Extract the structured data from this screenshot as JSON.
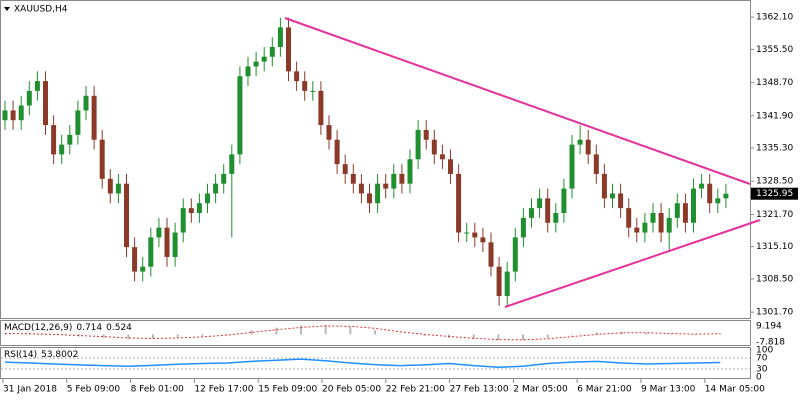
{
  "chart_data": {
    "type": "candlestick",
    "title": "XAUUSD,H4",
    "up_color": "#1f8f2f",
    "down_color": "#8b3a2a",
    "open": [
      1341,
      1343,
      1341,
      1344,
      1347,
      1349,
      1340,
      1334,
      1336,
      1338,
      1343,
      1346,
      1337,
      1329,
      1326,
      1328,
      1315,
      1310,
      1311,
      1317,
      1319,
      1313,
      1318,
      1323,
      1322,
      1324,
      1326,
      1328,
      1330,
      1334,
      1350,
      1352,
      1353,
      1354,
      1356,
      1360,
      1351,
      1349,
      1347,
      1347,
      1340,
      1337,
      1332,
      1330,
      1328,
      1326,
      1324,
      1328,
      1327,
      1330,
      1328,
      1333,
      1339,
      1337,
      1334,
      1333,
      1330,
      1318,
      1318,
      1317,
      1316,
      1311,
      1305,
      1310,
      1317,
      1321,
      1323,
      1325,
      1320,
      1322,
      1327,
      1336,
      1337,
      1334,
      1330,
      1325,
      1326,
      1323,
      1319,
      1318,
      1320,
      1322,
      1318,
      1321,
      1324,
      1320,
      1327,
      1328,
      1324,
      1325
    ],
    "high": [
      1345,
      1345,
      1346,
      1349,
      1351,
      1351,
      1342,
      1338,
      1340,
      1345,
      1348,
      1348,
      1339,
      1331,
      1330,
      1330,
      1317,
      1313,
      1319,
      1321,
      1321,
      1320,
      1325,
      1325,
      1326,
      1328,
      1330,
      1332,
      1336,
      1352,
      1354,
      1355,
      1356,
      1358,
      1362,
      1362,
      1353,
      1351,
      1349,
      1349,
      1342,
      1339,
      1334,
      1332,
      1330,
      1328,
      1330,
      1330,
      1332,
      1332,
      1335,
      1341,
      1341,
      1339,
      1336,
      1335,
      1332,
      1320,
      1320,
      1319,
      1318,
      1313,
      1312,
      1319,
      1323,
      1325,
      1327,
      1327,
      1324,
      1329,
      1338,
      1340,
      1339,
      1336,
      1332,
      1328,
      1328,
      1325,
      1321,
      1322,
      1324,
      1324,
      1323,
      1326,
      1326,
      1329,
      1330,
      1330,
      1327,
      1328
    ],
    "low": [
      1339,
      1339,
      1339,
      1342,
      1345,
      1338,
      1332,
      1332,
      1334,
      1336,
      1341,
      1335,
      1327,
      1324,
      1324,
      1313,
      1308,
      1308,
      1309,
      1315,
      1311,
      1311,
      1316,
      1320,
      1320,
      1322,
      1324,
      1326,
      1317,
      1332,
      1348,
      1350,
      1351,
      1352,
      1354,
      1349,
      1347,
      1345,
      1345,
      1338,
      1335,
      1330,
      1328,
      1326,
      1324,
      1322,
      1322,
      1325,
      1325,
      1326,
      1326,
      1331,
      1335,
      1332,
      1331,
      1328,
      1316,
      1316,
      1315,
      1314,
      1309,
      1303,
      1303,
      1308,
      1315,
      1319,
      1321,
      1318,
      1318,
      1320,
      1325,
      1334,
      1332,
      1328,
      1323,
      1323,
      1321,
      1317,
      1316,
      1316,
      1318,
      1316,
      1314,
      1319,
      1318,
      1318,
      1325,
      1322,
      1322,
      1323
    ],
    "close": [
      1343,
      1341,
      1344,
      1347,
      1349,
      1340,
      1334,
      1336,
      1338,
      1343,
      1346,
      1337,
      1329,
      1326,
      1328,
      1315,
      1310,
      1311,
      1317,
      1319,
      1313,
      1318,
      1323,
      1322,
      1324,
      1326,
      1328,
      1330,
      1334,
      1350,
      1352,
      1353,
      1354,
      1356,
      1360,
      1351,
      1349,
      1347,
      1347,
      1340,
      1337,
      1332,
      1330,
      1328,
      1326,
      1324,
      1328,
      1327,
      1330,
      1328,
      1333,
      1339,
      1337,
      1334,
      1333,
      1330,
      1318,
      1318,
      1317,
      1316,
      1311,
      1305,
      1310,
      1317,
      1321,
      1323,
      1325,
      1320,
      1322,
      1327,
      1336,
      1337,
      1334,
      1330,
      1325,
      1326,
      1323,
      1319,
      1318,
      1320,
      1322,
      1318,
      1321,
      1324,
      1320,
      1327,
      1328,
      1324,
      1325,
      1325.95
    ],
    "ylim": [
      1300.5,
      1365.2
    ],
    "yticks": [
      {
        "value": 1362.1,
        "label": "1362.10"
      },
      {
        "value": 1355.5,
        "label": "1355.50"
      },
      {
        "value": 1348.7,
        "label": "1348.70"
      },
      {
        "value": 1341.9,
        "label": "1341.90"
      },
      {
        "value": 1335.3,
        "label": "1335.30"
      },
      {
        "value": 1328.5,
        "label": "1328.50"
      },
      {
        "value": 1321.7,
        "label": "1321.70"
      },
      {
        "value": 1315.1,
        "label": "1315.10"
      },
      {
        "value": 1308.5,
        "label": "1308.50"
      },
      {
        "value": 1301.7,
        "label": "1301.70"
      }
    ],
    "time_labels": [
      "31 Jan 2018",
      "5 Feb 09:00",
      "8 Feb 01:00",
      "12 Feb 17:00",
      "15 Feb 09:00",
      "20 Feb 05:00",
      "22 Feb 21:00",
      "27 Feb 13:00",
      "2 Mar 05:00",
      "6 Mar 21:00",
      "9 Mar 13:00",
      "14 Mar 05:00"
    ],
    "indicators": [
      {
        "type": "macd",
        "label": "MACD(12,26,9)",
        "histogram_color": "#b8b8b8",
        "signal_color": "#e03030",
        "histogram": [
          0.5,
          0.3,
          -0.5,
          -1.5,
          -2.5,
          -3.5,
          -3,
          -2,
          -1,
          0.5,
          3,
          5,
          6.5,
          7,
          5.5,
          3,
          0.5,
          -1,
          -2.5,
          -3.5,
          -4.5,
          -4,
          -2.5,
          -0.5,
          1.5,
          2,
          1,
          0,
          -0.5,
          0.714
        ],
        "signal": [
          0.6,
          0.5,
          0,
          -0.8,
          -1.7,
          -2.6,
          -3,
          -2.6,
          -1.8,
          -0.5,
          1.5,
          3.5,
          5.2,
          6.3,
          6,
          4.5,
          2,
          0,
          -1.5,
          -2.8,
          -3.8,
          -4,
          -3.2,
          -1.6,
          0,
          1.2,
          1.3,
          0.6,
          0.2,
          0.524
        ],
        "ylim": [
          -7.818,
          9.194
        ],
        "yticks": [
          9.194,
          -7.818
        ]
      },
      {
        "type": "rsi",
        "label": "RSI(14)",
        "color": "#1e90ff",
        "values": [
          55,
          52,
          48,
          45,
          42,
          40,
          43,
          47,
          50,
          52,
          58,
          62,
          66,
          60,
          52,
          46,
          42,
          45,
          50,
          42,
          36,
          40,
          50,
          55,
          58,
          52,
          48,
          50,
          52,
          53.8002
        ],
        "ylim": [
          0,
          100
        ],
        "yticks": [
          100,
          70,
          30,
          0
        ]
      }
    ]
  }
}
